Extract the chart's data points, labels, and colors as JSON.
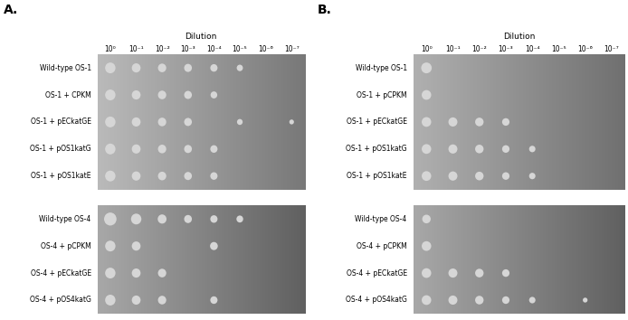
{
  "panel_A_label": "A.",
  "panel_B_label": "B.",
  "dilution_label": "Dilution",
  "dilution_ticks": [
    "10⁰",
    "10⁻¹",
    "10⁻²",
    "10⁻³",
    "10⁻⁴",
    "10⁻⁵",
    "10⁻⁶",
    "10⁻⁷"
  ],
  "panel_A_top_rows": [
    "Wild-type OS-1",
    "OS-1 + CPKM",
    "OS-1 + pECkatGE",
    "OS-1 + pOS1katG",
    "OS-1 + pOS1katE"
  ],
  "panel_A_bot_rows": [
    "Wild-type OS-4",
    "OS-4 + pCPKM",
    "OS-4 + pECkatGE",
    "OS-4 + pOS4katG"
  ],
  "panel_B_top_rows": [
    "Wild-type OS-1",
    "OS-1 + pCPKM",
    "OS-1 + pECkatGE",
    "OS-1 + pOS1katG",
    "OS-1 + pOS1katE"
  ],
  "panel_B_bot_rows": [
    "Wild-type OS-4",
    "OS-4 + pCPKM",
    "OS-4 + pECkatGE",
    "OS-4 + pOS4katG"
  ],
  "spot_sizes_A_top": [
    [
      20,
      17,
      16,
      15,
      14,
      12,
      0,
      0
    ],
    [
      20,
      17,
      16,
      15,
      13,
      0,
      0,
      0
    ],
    [
      20,
      17,
      16,
      15,
      0,
      11,
      0,
      9
    ],
    [
      20,
      17,
      16,
      15,
      14,
      0,
      0,
      0
    ],
    [
      20,
      17,
      16,
      15,
      14,
      0,
      0,
      0
    ]
  ],
  "spot_sizes_A_bot": [
    [
      24,
      20,
      17,
      15,
      14,
      13,
      0,
      0
    ],
    [
      20,
      17,
      0,
      0,
      15,
      0,
      0,
      0
    ],
    [
      20,
      17,
      16,
      0,
      0,
      0,
      0,
      0
    ],
    [
      20,
      17,
      16,
      0,
      14,
      0,
      0,
      0
    ]
  ],
  "spot_sizes_B_top": [
    [
      20,
      0,
      0,
      0,
      0,
      0,
      0,
      0
    ],
    [
      18,
      0,
      0,
      0,
      0,
      0,
      0,
      0
    ],
    [
      18,
      17,
      16,
      14,
      0,
      0,
      0,
      0
    ],
    [
      18,
      17,
      16,
      14,
      12,
      0,
      0,
      0
    ],
    [
      18,
      17,
      16,
      14,
      12,
      0,
      0,
      0
    ]
  ],
  "spot_sizes_B_bot": [
    [
      16,
      0,
      0,
      0,
      0,
      0,
      0,
      0
    ],
    [
      18,
      0,
      0,
      0,
      0,
      0,
      0,
      0
    ],
    [
      18,
      17,
      16,
      14,
      0,
      0,
      0,
      0
    ],
    [
      18,
      17,
      16,
      14,
      12,
      0,
      9,
      0
    ]
  ],
  "A_top_left_color": "#bababa",
  "A_top_right_color": "#787878",
  "A_bot_left_color": "#a8a8a8",
  "A_bot_right_color": "#606060",
  "B_top_left_color": "#b0b0b0",
  "B_top_right_color": "#707070",
  "B_bot_left_color": "#a8a8a8",
  "B_bot_right_color": "#606060",
  "spot_color": "#d6d6d6",
  "label_fontsize": 5.5,
  "tick_fontsize": 5.5,
  "dilution_fontsize": 6.5,
  "panel_label_fontsize": 10
}
